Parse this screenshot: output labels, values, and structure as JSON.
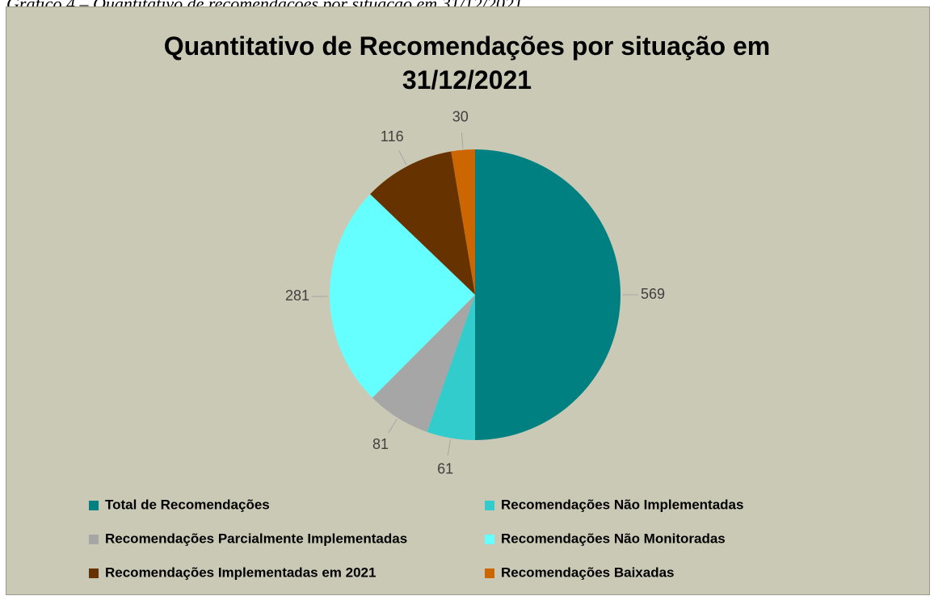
{
  "caption": "Gráfico 4 – Quantitativo de recomendações por situação em 31/12/2021.",
  "chart_data": {
    "type": "pie",
    "title": "Quantitativo de Recomendações por situação em 31/12/2021",
    "categories": [
      "Total de Recomendações",
      "Recomendações Não Implementadas",
      "Recomendações Parcialmente Implementadas",
      "Recomendações Não Monitoradas",
      "Recomendações Implementadas em 2021",
      "Recomendações Baixadas"
    ],
    "values": [
      569,
      61,
      81,
      281,
      116,
      30
    ],
    "colors": [
      "#008080",
      "#33cccc",
      "#a6a6a6",
      "#66ffff",
      "#663300",
      "#cc6600"
    ]
  }
}
